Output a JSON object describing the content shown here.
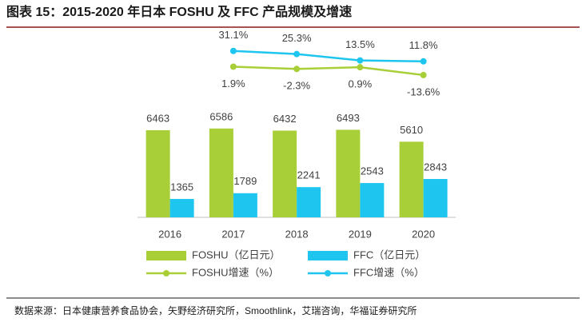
{
  "chart_data": {
    "type": "combo",
    "title": "图表 15：2015-2020 年日本 FOSHU 及 FFC 产品规模及增速",
    "source": "数据来源：日本健康营养食品协会，矢野经济研究所，Smoothlink，艾瑞咨询，华福证券研究所",
    "categories": [
      "2016",
      "2017",
      "2018",
      "2019",
      "2020"
    ],
    "ylim": [
      0,
      8000
    ],
    "y2lim": [
      -30,
      50
    ],
    "series": [
      {
        "name": "FOSHU（亿日元）",
        "type": "bar",
        "color": "#a8cf38",
        "values": [
          6463,
          6586,
          6432,
          6493,
          5610
        ]
      },
      {
        "name": "FFC（亿日元）",
        "type": "bar",
        "color": "#1ec6ef",
        "values": [
          1365,
          1789,
          2241,
          2543,
          2843
        ]
      },
      {
        "name": "FOSHU增速（%）",
        "type": "line",
        "axis": "y2",
        "color": "#a8cf38",
        "values": [
          null,
          1.9,
          -2.3,
          0.9,
          -13.6
        ],
        "value_labels": [
          null,
          "1.9%",
          "-2.3%",
          "0.9%",
          "-13.6%"
        ]
      },
      {
        "name": "FFC增速（%）",
        "type": "line",
        "axis": "y2",
        "color": "#1ec6ef",
        "values": [
          null,
          31.1,
          25.3,
          13.5,
          11.8
        ],
        "value_labels": [
          null,
          "31.1%",
          "25.3%",
          "13.5%",
          "11.8%"
        ]
      }
    ]
  }
}
